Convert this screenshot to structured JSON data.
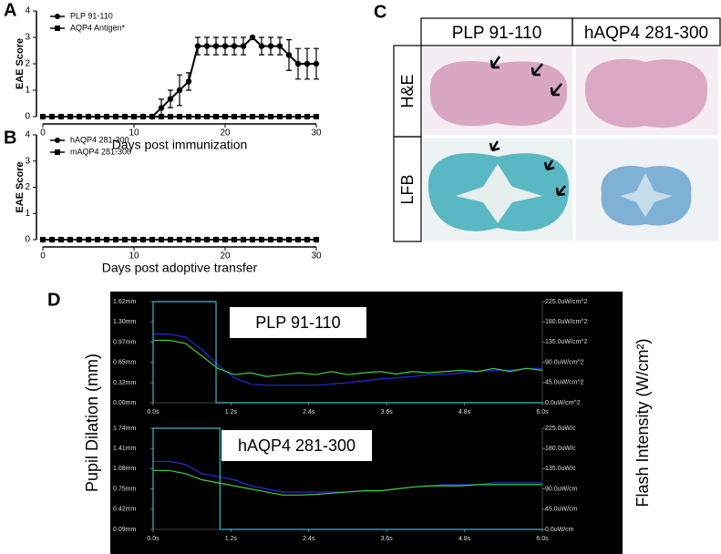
{
  "panels": [
    "A",
    "B",
    "C",
    "D"
  ],
  "panel_c": {
    "columns": [
      "PLP 91-110",
      "hAQP4 281-300"
    ],
    "rows": [
      "H&E",
      "LFB"
    ]
  },
  "panel_d": {
    "ylabel": "Pupil Dilation (mm)",
    "y2label": "Flash Intensity (W/cm²)"
  },
  "chart_data": [
    {
      "type": "line",
      "ylabel": "EAE Score",
      "xlabel": "Days post immunization",
      "legend": "upper left",
      "x": [
        0,
        1,
        2,
        3,
        4,
        5,
        6,
        7,
        8,
        9,
        10,
        11,
        12,
        13,
        14,
        15,
        16,
        17,
        18,
        19,
        20,
        21,
        22,
        23,
        24,
        25,
        26,
        27,
        28,
        29,
        30
      ],
      "xlim": [
        0,
        30
      ],
      "xticks": [
        0,
        10,
        20,
        30
      ],
      "ylim": [
        0,
        4
      ],
      "yticks": [
        0,
        1,
        2,
        3,
        4
      ],
      "series": [
        {
          "name": "PLP 91-110",
          "color": "#000000",
          "marker": "circle",
          "values": [
            0,
            0,
            0,
            0,
            0,
            0,
            0,
            0,
            0,
            0,
            0,
            0,
            0,
            0.33,
            0.67,
            1,
            1.33,
            2.67,
            2.67,
            2.67,
            2.67,
            2.67,
            2.67,
            3,
            2.67,
            2.67,
            2.67,
            2.33,
            2,
            2,
            2
          ],
          "errors": [
            null,
            null,
            null,
            null,
            null,
            null,
            null,
            null,
            null,
            null,
            null,
            null,
            null,
            0.33,
            0.33,
            0.58,
            0.33,
            0.33,
            0.33,
            0.33,
            0.33,
            0.33,
            0.33,
            null,
            0.33,
            0.33,
            0.33,
            0.58,
            0.58,
            0.58,
            0.58
          ]
        },
        {
          "name": "AQP4 Antigen*",
          "color": "#000000",
          "marker": "square",
          "values": [
            0,
            0,
            0,
            0,
            0,
            0,
            0,
            0,
            0,
            0,
            0,
            0,
            0,
            0,
            0,
            0,
            0,
            0,
            0,
            0,
            0,
            0,
            0,
            0,
            0,
            0,
            0,
            0,
            0,
            0,
            0
          ]
        }
      ]
    },
    {
      "type": "line",
      "ylabel": "EAE Score",
      "xlabel": "Days post adoptive transfer",
      "legend": "upper left",
      "x": [
        0,
        1,
        2,
        3,
        4,
        5,
        6,
        7,
        8,
        9,
        10,
        11,
        12,
        13,
        14,
        15,
        16,
        17,
        18,
        19,
        20,
        21,
        22,
        23,
        24,
        25,
        26,
        27,
        28,
        29,
        30
      ],
      "xlim": [
        0,
        30
      ],
      "xticks": [
        0,
        10,
        20,
        30
      ],
      "ylim": [
        0,
        4
      ],
      "yticks": [
        0,
        1,
        2,
        3,
        4
      ],
      "series": [
        {
          "name": "hAQP4 281-300",
          "color": "#000000",
          "marker": "circle",
          "values": [
            0,
            0,
            0,
            0,
            0,
            0,
            0,
            0,
            0,
            0,
            0,
            0,
            0,
            0,
            0,
            0,
            0,
            0,
            0,
            0,
            0,
            0,
            0,
            0,
            0,
            0,
            0,
            0,
            0,
            0,
            0
          ]
        },
        {
          "name": "mAQP4 281-300",
          "color": "#000000",
          "marker": "square",
          "values": [
            0,
            0,
            0,
            0,
            0,
            0,
            0,
            0,
            0,
            0,
            0,
            0,
            0,
            0,
            0,
            0,
            0,
            0,
            0,
            0,
            0,
            0,
            0,
            0,
            0,
            0,
            0,
            0,
            0,
            0,
            0
          ]
        }
      ]
    },
    {
      "type": "line",
      "title": "PLP 91-110",
      "x": [
        0,
        0.25,
        0.5,
        0.75,
        1,
        1.25,
        1.5,
        1.75,
        2,
        2.25,
        2.5,
        2.75,
        3,
        3.25,
        3.5,
        3.75,
        4,
        4.25,
        4.5,
        4.75,
        5,
        5.25,
        5.5,
        5.75,
        6
      ],
      "xlim": [
        0,
        6
      ],
      "xticks": [
        {
          "value": 0,
          "label": "0.0s"
        },
        {
          "value": 1.2,
          "label": "1.2s"
        },
        {
          "value": 2.4,
          "label": "2.4s"
        },
        {
          "value": 3.6,
          "label": "3.6s"
        },
        {
          "value": 4.8,
          "label": "4.8s"
        },
        {
          "value": 6,
          "label": "6.0s"
        }
      ],
      "ylim": [
        0,
        1.62
      ],
      "yticks": [
        {
          "value": 0,
          "label": "0.00mm"
        },
        {
          "value": 0.32,
          "label": "0.32mm"
        },
        {
          "value": 0.65,
          "label": "0.65mm"
        },
        {
          "value": 0.97,
          "label": "0.97mm"
        },
        {
          "value": 1.3,
          "label": "1.30mm"
        },
        {
          "value": 1.62,
          "label": "1.62mm"
        }
      ],
      "y2lim": [
        0,
        225
      ],
      "y2ticks": [
        {
          "value": 0,
          "label": "0.0uW/cm^2"
        },
        {
          "value": 45,
          "label": "45.0uW/cm^2"
        },
        {
          "value": 90,
          "label": "90.0uW/cm^2"
        },
        {
          "value": 135,
          "label": "135.0uW/cm^2"
        },
        {
          "value": 180,
          "label": "180.0uW/cm^2"
        },
        {
          "value": 225,
          "label": "225.0uW/cm^2"
        }
      ],
      "series": [
        {
          "color": "#2a2ad8",
          "values": [
            1.1,
            1.1,
            1.05,
            0.85,
            0.6,
            0.4,
            0.3,
            0.28,
            0.28,
            0.28,
            0.28,
            0.3,
            0.32,
            0.35,
            0.38,
            0.4,
            0.42,
            0.45,
            0.45,
            0.48,
            0.5,
            0.52,
            0.52,
            0.55,
            0.55
          ]
        },
        {
          "color": "#3fcf3f",
          "values": [
            1.0,
            1.0,
            0.95,
            0.75,
            0.55,
            0.45,
            0.48,
            0.42,
            0.45,
            0.48,
            0.45,
            0.5,
            0.45,
            0.48,
            0.5,
            0.46,
            0.5,
            0.48,
            0.5,
            0.52,
            0.5,
            0.55,
            0.5,
            0.55,
            0.52
          ]
        },
        {
          "color": "#3fb8c8",
          "axis": "y2",
          "x": [
            0,
            0,
            0.97,
            0.97,
            6
          ],
          "values": [
            0,
            225,
            225,
            0,
            0
          ]
        }
      ]
    },
    {
      "type": "line",
      "title": "hAQP4 281-300",
      "x": [
        0,
        0.25,
        0.5,
        0.75,
        1,
        1.25,
        1.5,
        1.75,
        2,
        2.25,
        2.5,
        2.75,
        3,
        3.25,
        3.5,
        3.75,
        4,
        4.25,
        4.5,
        4.75,
        5,
        5.25,
        5.5,
        5.75,
        6
      ],
      "xlim": [
        0,
        6
      ],
      "xticks": [
        {
          "value": 0,
          "label": "0.0s"
        },
        {
          "value": 1.2,
          "label": "1.2s"
        },
        {
          "value": 2.4,
          "label": "2.4s"
        },
        {
          "value": 3.6,
          "label": "3.6s"
        },
        {
          "value": 4.8,
          "label": "4.8s"
        },
        {
          "value": 6,
          "label": "6.0s"
        }
      ],
      "ylim": [
        0.09,
        1.74
      ],
      "yticks": [
        {
          "value": 0.09,
          "label": "0.09mm"
        },
        {
          "value": 0.42,
          "label": "0.42mm"
        },
        {
          "value": 0.75,
          "label": "0.75mm"
        },
        {
          "value": 1.08,
          "label": "1.08mm"
        },
        {
          "value": 1.41,
          "label": "1.41mm"
        },
        {
          "value": 1.74,
          "label": "1.74mm"
        }
      ],
      "y2lim": [
        0,
        225
      ],
      "y2ticks": [
        {
          "value": 0,
          "label": "0.0uW/cm"
        },
        {
          "value": 45,
          "label": "45.0uW/cm"
        },
        {
          "value": 90,
          "label": "90.0uW/cm"
        },
        {
          "value": 135,
          "label": "135.0uW/c"
        },
        {
          "value": 180,
          "label": "180.0uW/c"
        },
        {
          "value": 225,
          "label": "225.0uW/c"
        }
      ],
      "series": [
        {
          "color": "#2a2ad8",
          "values": [
            1.2,
            1.2,
            1.15,
            1.0,
            0.95,
            0.9,
            0.8,
            0.75,
            0.7,
            0.7,
            0.7,
            0.7,
            0.7,
            0.72,
            0.72,
            0.75,
            0.78,
            0.8,
            0.82,
            0.82,
            0.82,
            0.85,
            0.85,
            0.85,
            0.85
          ]
        },
        {
          "color": "#3fcf3f",
          "values": [
            1.05,
            1.05,
            1.0,
            0.9,
            0.85,
            0.8,
            0.75,
            0.7,
            0.65,
            0.65,
            0.66,
            0.68,
            0.7,
            0.72,
            0.72,
            0.75,
            0.78,
            0.8,
            0.8,
            0.8,
            0.82,
            0.82,
            0.82,
            0.82,
            0.82
          ]
        },
        {
          "color": "#3fb8c8",
          "axis": "y2",
          "x": [
            0,
            0,
            1.03,
            1.03,
            6
          ],
          "values": [
            0,
            225,
            225,
            0,
            0
          ]
        }
      ]
    }
  ]
}
